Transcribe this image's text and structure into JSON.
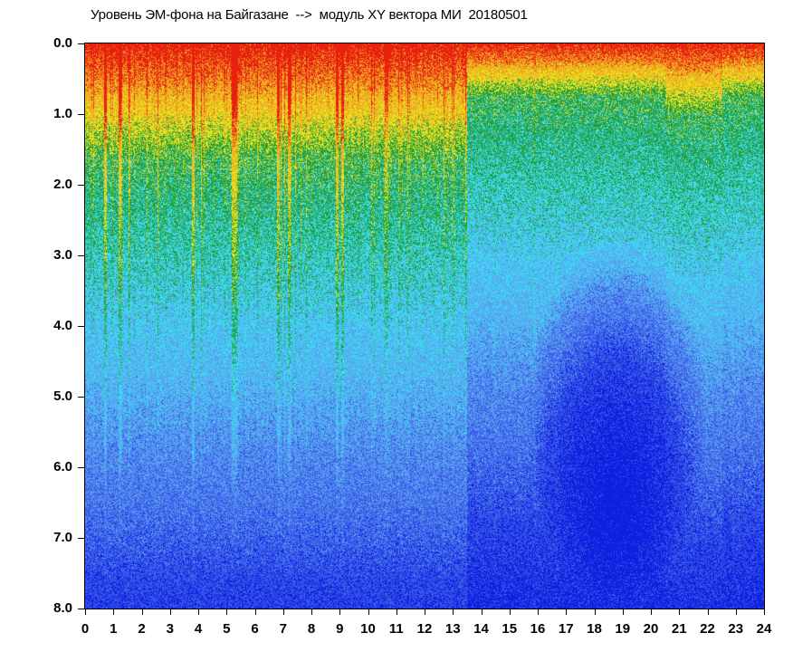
{
  "chart_data": {
    "type": "heatmap",
    "title": "Уровень ЭМ-фона на Байгазане  -->  модуль XY вектора МИ  20180501",
    "xlabel": "",
    "ylabel": "",
    "x_ticks": [
      "0",
      "1",
      "2",
      "3",
      "4",
      "5",
      "6",
      "7",
      "8",
      "9",
      "10",
      "11",
      "12",
      "13",
      "14",
      "15",
      "16",
      "17",
      "18",
      "19",
      "20",
      "21",
      "22",
      "23",
      "24"
    ],
    "y_ticks": [
      "0.0",
      "1.0",
      "2.0",
      "3.0",
      "4.0",
      "5.0",
      "6.0",
      "7.0",
      "8.0"
    ],
    "xlim": [
      0,
      24
    ],
    "ylim": [
      8.0,
      0.0
    ],
    "colormap": [
      "#1020e0",
      "#3a5ce8",
      "#5aa0f0",
      "#40d8f0",
      "#20a040",
      "#e8e020",
      "#f0a020",
      "#e82010"
    ],
    "regions": {
      "early_hours": {
        "x_range": [
          0,
          13.5
        ],
        "high_level_to_y": 1.5,
        "description_levels": "red/yellow near top, green to ~1.8, cyan to ~3, blue below"
      },
      "late_hours": {
        "x_range": [
          13.5,
          24
        ],
        "high_level_to_y": 0.6,
        "darkest_zone": {
          "x_range": [
            15.5,
            22
          ],
          "y_range": [
            3.0,
            7.5
          ]
        }
      }
    },
    "grid": false
  }
}
